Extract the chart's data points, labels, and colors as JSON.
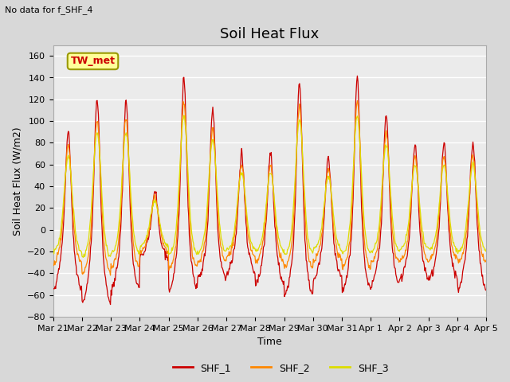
{
  "title": "Soil Heat Flux",
  "subtitle": "No data for f_SHF_4",
  "xlabel": "Time",
  "ylabel": "Soil Heat Flux (W/m2)",
  "ylim": [
    -80,
    170
  ],
  "yticks": [
    -80,
    -60,
    -40,
    -20,
    0,
    20,
    40,
    60,
    80,
    100,
    120,
    140,
    160
  ],
  "background_color": "#d8d8d8",
  "plot_bg_color": "#ebebeb",
  "grid_color": "#ffffff",
  "legend_labels": [
    "SHF_1",
    "SHF_2",
    "SHF_3"
  ],
  "legend_colors": [
    "#cc0000",
    "#ff8800",
    "#dddd00"
  ],
  "annotation_label": "TW_met",
  "annotation_color": "#cc0000",
  "annotation_bg": "#ffff99",
  "annotation_border": "#999900",
  "x_tick_labels": [
    "Mar 21",
    "Mar 22",
    "Mar 23",
    "Mar 24",
    "Mar 25",
    "Mar 26",
    "Mar 27",
    "Mar 28",
    "Mar 29",
    "Mar 30",
    "Mar 31",
    "Apr 1",
    "Apr 2",
    "Apr 3",
    "Apr 4",
    "Apr 5"
  ],
  "title_fontsize": 13,
  "axis_label_fontsize": 9,
  "tick_fontsize": 8,
  "legend_fontsize": 9
}
